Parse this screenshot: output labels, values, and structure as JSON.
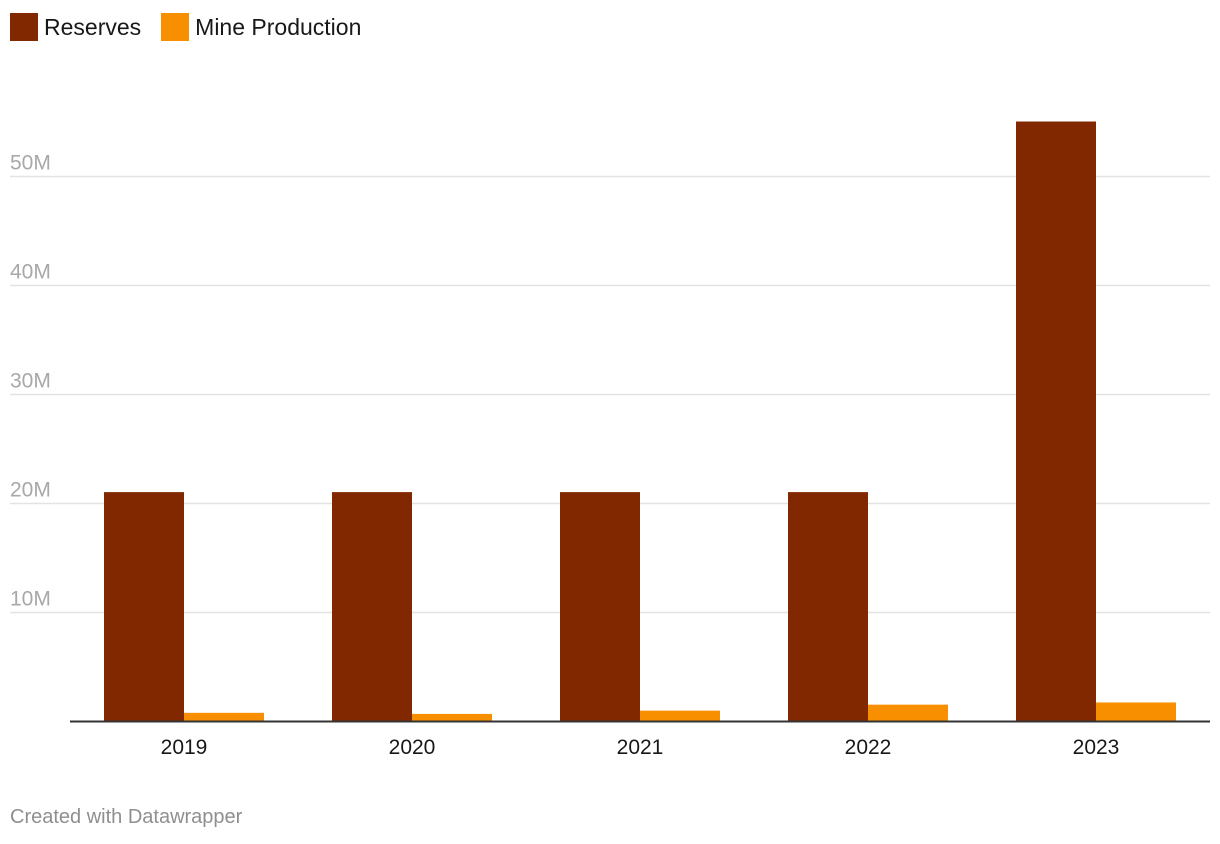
{
  "legend": {
    "items": [
      {
        "label": "Reserves",
        "color": "#822800"
      },
      {
        "label": "Mine Production",
        "color": "#f88f00"
      }
    ]
  },
  "footer": {
    "text": "Created with Datawrapper"
  },
  "chart_data": {
    "type": "bar",
    "title": "",
    "xlabel": "",
    "ylabel": "",
    "categories": [
      "2019",
      "2020",
      "2021",
      "2022",
      "2023"
    ],
    "series": [
      {
        "name": "Reserves",
        "color": "#822800",
        "values": [
          21000000,
          21000000,
          21000000,
          21000000,
          55000000
        ]
      },
      {
        "name": "Mine Production",
        "color": "#f88f00",
        "values": [
          750000,
          650000,
          950000,
          1500000,
          1700000
        ]
      }
    ],
    "yticks": [
      {
        "value": 10000000,
        "label": "10M"
      },
      {
        "value": 20000000,
        "label": "20M"
      },
      {
        "value": 30000000,
        "label": "30M"
      },
      {
        "value": 40000000,
        "label": "40M"
      },
      {
        "value": 50000000,
        "label": "50M"
      }
    ],
    "ylim": [
      0,
      55000000
    ],
    "grid": true,
    "legend_position": "top-left",
    "axis_color": "#333333",
    "grid_color": "#e3e3e3",
    "tick_label_color": "#a8a8a8"
  }
}
